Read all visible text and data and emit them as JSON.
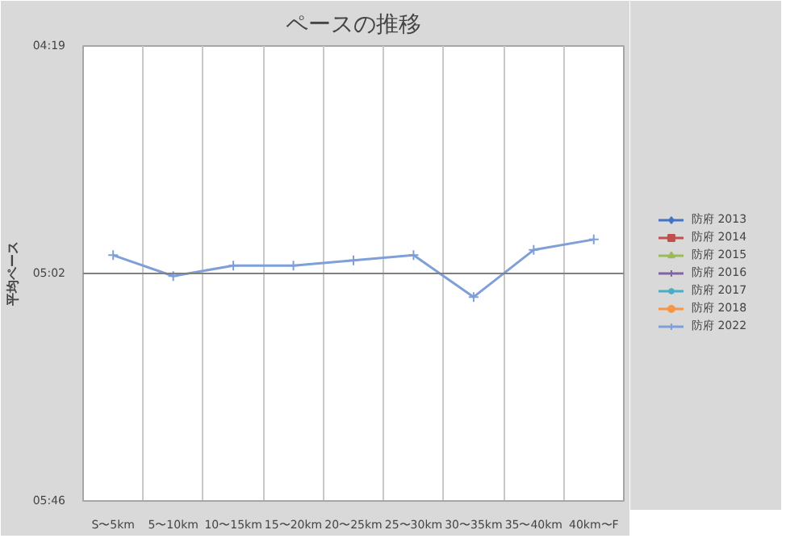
{
  "chart_data": {
    "type": "line",
    "title": "ペースの推移",
    "ylabel": "平均ペース",
    "categories": [
      "S〜5km",
      "5〜10km",
      "10〜15km",
      "15〜20km",
      "20〜25km",
      "25〜30km",
      "30〜35km",
      "35〜40km",
      "40km〜F"
    ],
    "series": [
      {
        "name": "防府 2013",
        "color": "#4472c4",
        "marker": "diamond",
        "values": [
          null,
          null,
          null,
          null,
          null,
          null,
          null,
          null,
          null
        ]
      },
      {
        "name": "防府 2014",
        "color": "#c0504d",
        "marker": "square",
        "values": [
          null,
          null,
          null,
          null,
          null,
          null,
          null,
          null,
          null
        ]
      },
      {
        "name": "防府 2015",
        "color": "#9bbb59",
        "marker": "triangle",
        "values": [
          null,
          null,
          null,
          null,
          null,
          null,
          null,
          null,
          null
        ]
      },
      {
        "name": "防府 2016",
        "color": "#8064a2",
        "marker": "cross",
        "values": [
          null,
          null,
          null,
          null,
          null,
          null,
          null,
          null,
          null
        ]
      },
      {
        "name": "防府 2017",
        "color": "#4bacc6",
        "marker": "star",
        "values": [
          null,
          null,
          null,
          null,
          null,
          null,
          null,
          null,
          null
        ]
      },
      {
        "name": "防府 2018",
        "color": "#f79646",
        "marker": "circle",
        "values": [
          null,
          null,
          null,
          null,
          null,
          null,
          null,
          null,
          null
        ]
      },
      {
        "name": "防府 2022",
        "color": "#7f9fd9",
        "marker": "cross",
        "values": [
          299,
          303,
          301,
          301,
          300,
          299,
          307,
          298,
          296
        ]
      }
    ],
    "ylim": [
      346,
      259
    ],
    "yticks": [
      {
        "value": 259,
        "label": "04:19"
      },
      {
        "value": 302.5,
        "label": "05:02"
      },
      {
        "value": 346,
        "label": "05:46"
      }
    ],
    "ref_lines": [
      {
        "axis": "y",
        "value": 302.5,
        "color": "#808080"
      }
    ],
    "grid": "x",
    "legend": "right",
    "line_style": "solid"
  }
}
